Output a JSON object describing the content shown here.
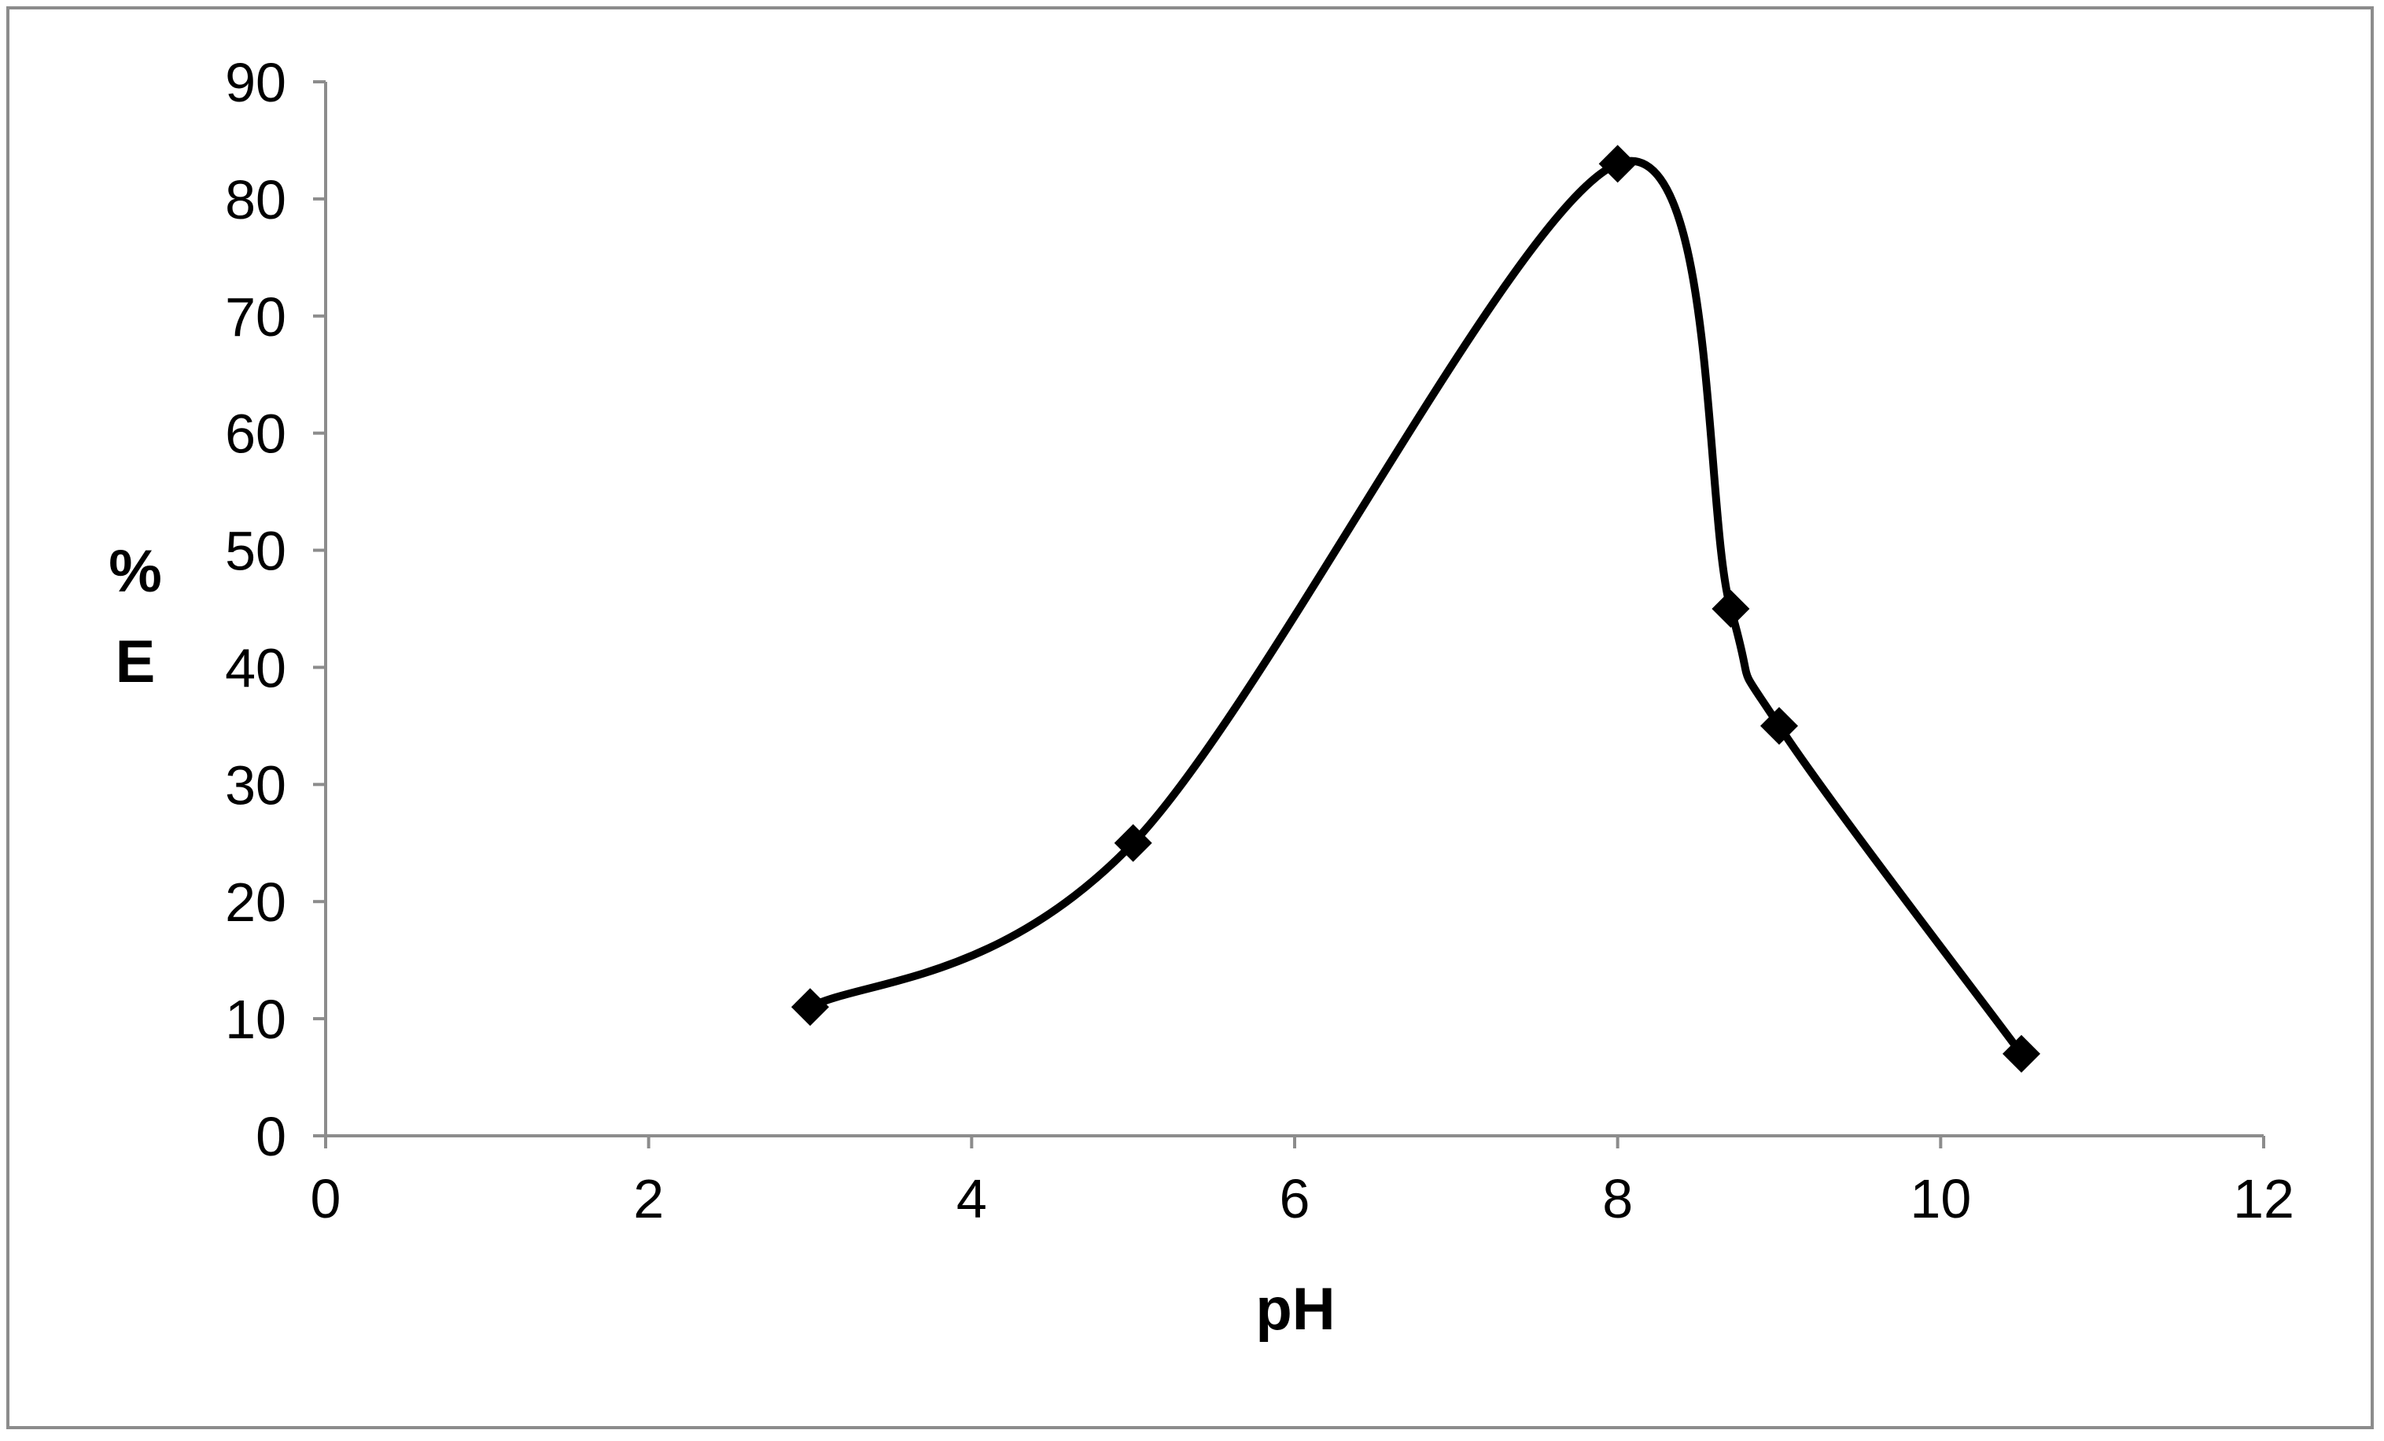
{
  "chart_data": {
    "type": "scatter",
    "xlabel": "pH",
    "ylabel_lines": [
      "%",
      "E"
    ],
    "xlim": [
      0,
      12
    ],
    "ylim": [
      0,
      90
    ],
    "x_ticks": [
      0,
      2,
      4,
      6,
      8,
      10,
      12
    ],
    "y_ticks": [
      0,
      10,
      20,
      30,
      40,
      50,
      60,
      70,
      80,
      90
    ],
    "grid": false,
    "legend": "none",
    "smoothed_line": true,
    "marker": "diamond",
    "series": [
      {
        "x": [
          3,
          5,
          8,
          8.7,
          9,
          10.5
        ],
        "y": [
          11,
          25,
          83,
          45,
          35,
          7
        ]
      }
    ]
  },
  "colors": {
    "series": "#000000",
    "axes": "#8c8c8c",
    "text": "#000000",
    "frame": "#8c8c8c"
  }
}
